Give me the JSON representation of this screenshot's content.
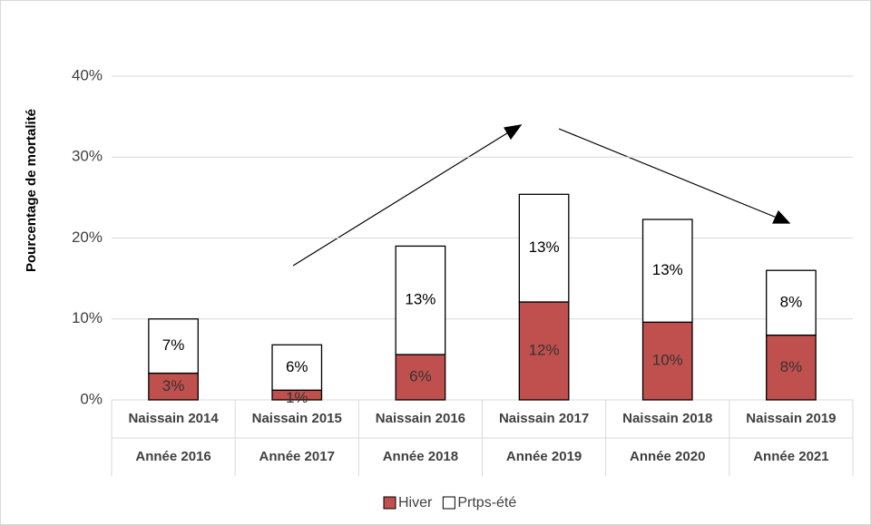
{
  "chart_data": {
    "type": "stacked_bar",
    "y_axis_label": "Pourcentage de mortalité",
    "categories": [
      [
        "Naissain 2014",
        "Année 2016"
      ],
      [
        "Naissain 2015",
        "Année 2017"
      ],
      [
        "Naissain 2016",
        "Année 2018"
      ],
      [
        "Naissain 2017",
        "Année 2019"
      ],
      [
        "Naissain 2018",
        "Année 2020"
      ],
      [
        "Naissain 2019",
        "Année 2021"
      ]
    ],
    "series": [
      {
        "name": "Hiver",
        "color": "#c0504d",
        "values": [
          3.3,
          1.2,
          5.6,
          12.1,
          9.6,
          8.0
        ],
        "value_labels": [
          "3%",
          "1%",
          "6%",
          "12%",
          "10%",
          "8%"
        ]
      },
      {
        "name": "Prtps-été",
        "color": "#ffffff",
        "values": [
          6.7,
          5.6,
          13.4,
          13.3,
          12.7,
          8.0
        ],
        "value_labels": [
          "7%",
          "6%",
          "13%",
          "13%",
          "13%",
          "8%"
        ]
      }
    ],
    "ylim": [
      0,
      40
    ],
    "yticks": [
      {
        "value": 0,
        "label": "0%"
      },
      {
        "value": 10,
        "label": "10%"
      },
      {
        "value": 20,
        "label": "20%"
      },
      {
        "value": 30,
        "label": "30%"
      },
      {
        "value": 40,
        "label": "40%"
      }
    ],
    "grid": true,
    "legend": "bottom"
  }
}
